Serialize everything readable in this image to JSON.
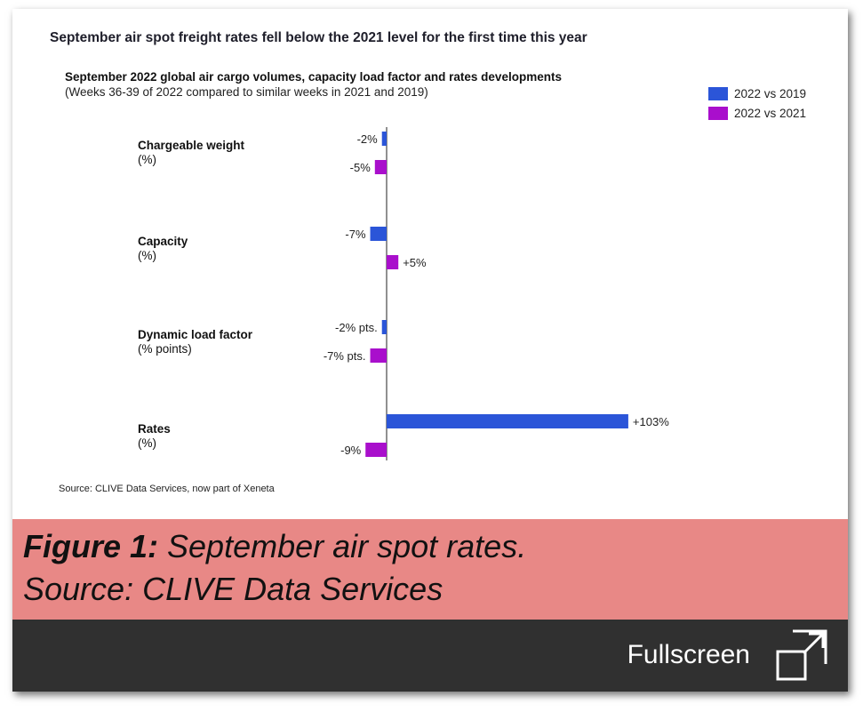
{
  "headline": "September air spot freight rates fell below the 2021 level for the first time this year",
  "chart_data": {
    "type": "bar",
    "orientation": "horizontal",
    "title": "September 2022 global air cargo volumes, capacity load factor and rates developments",
    "subtitle": "(Weeks 36-39 of 2022 compared to similar weeks in 2021 and 2019)",
    "categories": [
      {
        "name": "Chargeable weight",
        "unit": "(%)"
      },
      {
        "name": "Capacity",
        "unit": "(%)"
      },
      {
        "name": "Dynamic load factor",
        "unit": "(% points)"
      },
      {
        "name": "Rates",
        "unit": "(%)"
      }
    ],
    "series": [
      {
        "name": "2022 vs 2019",
        "color": "#2b55d8",
        "values": [
          -2,
          -7,
          -2,
          103
        ],
        "labels": [
          "-2%",
          "-7%",
          "-2% pts.",
          "+103%"
        ]
      },
      {
        "name": "2022 vs 2021",
        "color": "#a90fcc",
        "values": [
          -5,
          5,
          -7,
          -9
        ],
        "labels": [
          "-5%",
          "+5%",
          "-7% pts.",
          "-9%"
        ]
      }
    ],
    "legend_position": "top-right",
    "grid": false
  },
  "source": "Source: CLIVE Data Services, now part of Xeneta",
  "caption": {
    "label": "Figure 1:",
    "text": " September air spot rates.",
    "line2": "Source: CLIVE Data Services"
  },
  "fullscreen": {
    "label": "Fullscreen",
    "icon": "expand-icon"
  }
}
